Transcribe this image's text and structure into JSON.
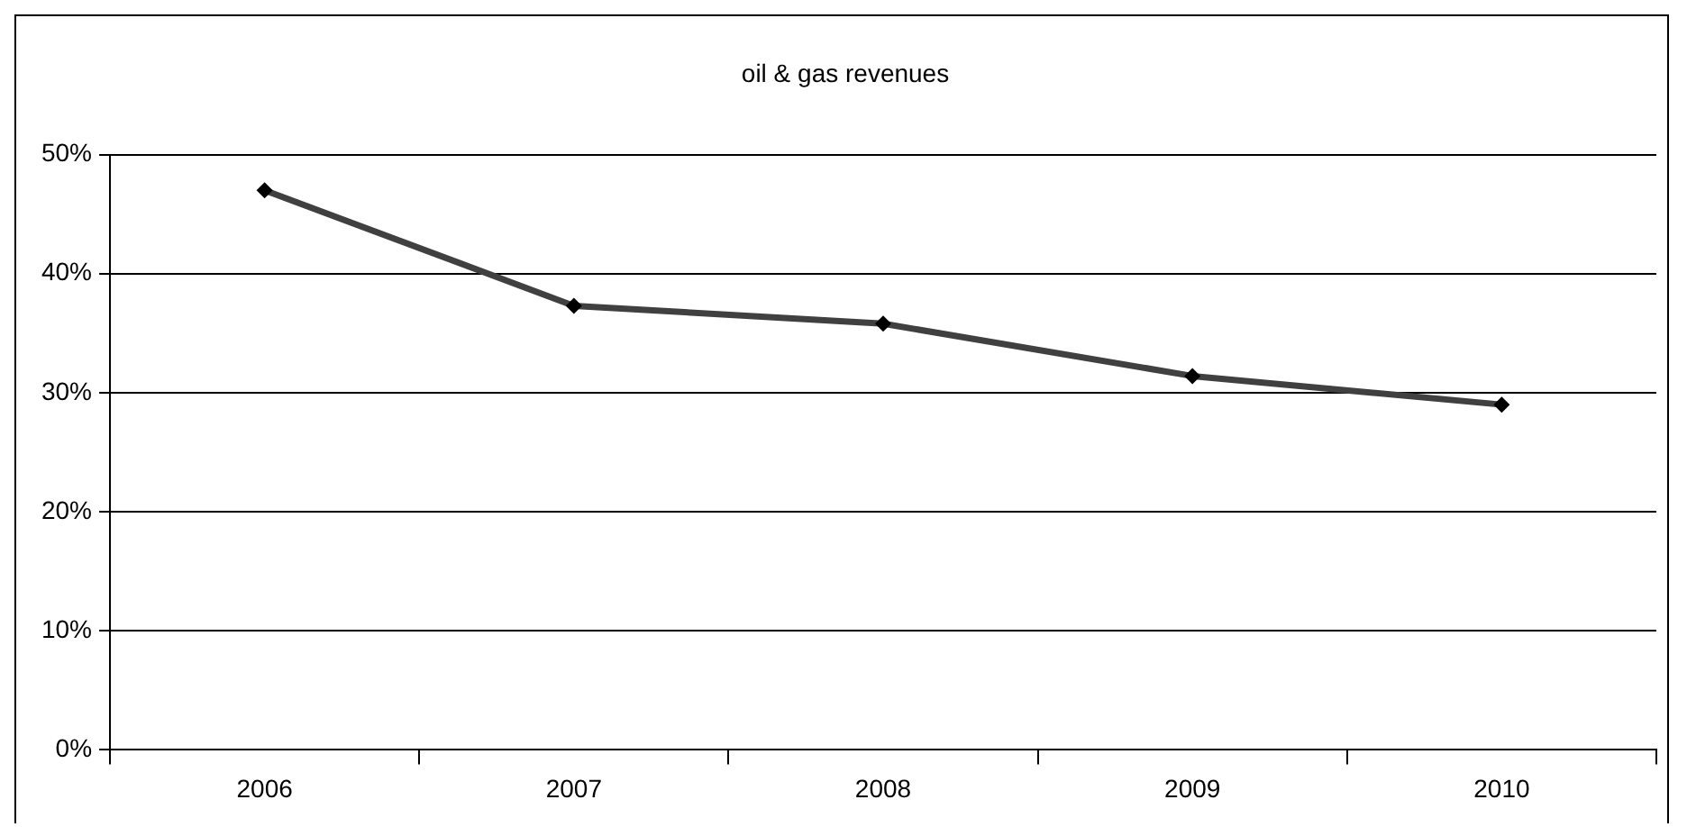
{
  "chart_data": {
    "type": "line",
    "title": "oil & gas revenues",
    "categories": [
      "2006",
      "2007",
      "2008",
      "2009",
      "2010"
    ],
    "series": [
      {
        "color": "#404040",
        "values": [
          47,
          37.3,
          35.8,
          31.4,
          29
        ]
      }
    ],
    "ylim": [
      0,
      50
    ],
    "yticks": [
      {
        "value": 0,
        "label": "0%"
      },
      {
        "value": 10,
        "label": "10%"
      },
      {
        "value": 20,
        "label": "20%"
      },
      {
        "value": 30,
        "label": "30%"
      },
      {
        "value": 40,
        "label": "40%"
      },
      {
        "value": 50,
        "label": "50%"
      }
    ],
    "grid": "y",
    "legend": false,
    "marker": "diamond",
    "line_style": "solid"
  }
}
